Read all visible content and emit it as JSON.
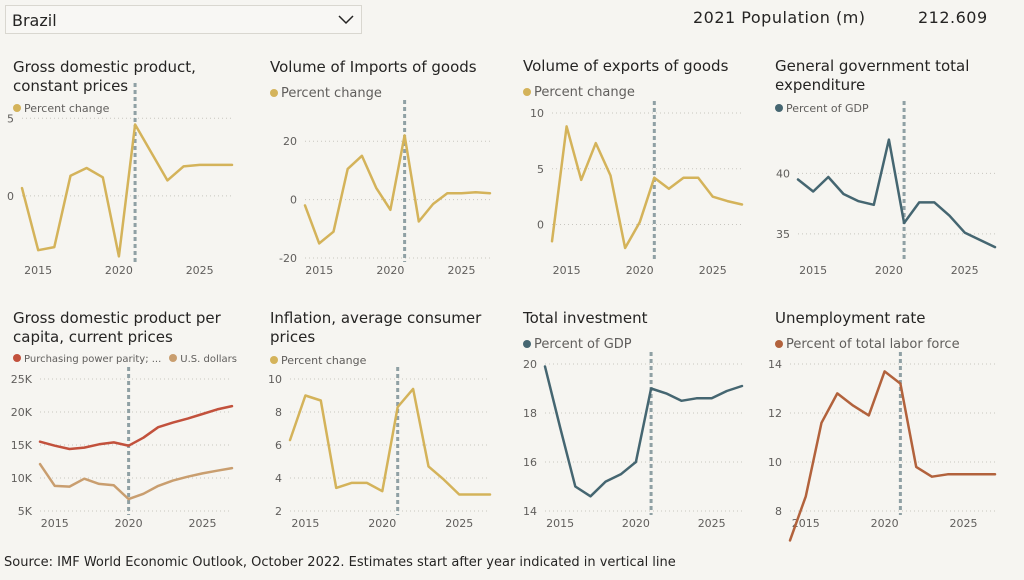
{
  "country_select": {
    "value": "Brazil",
    "icon": "chevron-down-icon"
  },
  "population": {
    "label": "2021 Population (m)",
    "value": "212.609"
  },
  "source": "Source: IMF World Economic Outlook, October 2022. Estimates start after year indicated in vertical line",
  "colors": {
    "gold": "#d4b35a",
    "slate": "#456671",
    "red": "#c2513c",
    "tan": "#c99e6f",
    "rust": "#b2623c",
    "grid": "#c8c6c0",
    "vline": "#8fa0a4"
  },
  "chart_data": [
    {
      "type": "line",
      "title": "Gross domestic product, constant prices",
      "series": [
        {
          "name": "Percent change",
          "color": "#d4b35a",
          "x": [
            2014,
            2015,
            2016,
            2017,
            2018,
            2019,
            2020,
            2021,
            2022,
            2023,
            2024,
            2025,
            2026,
            2027
          ],
          "y": [
            0.5,
            -3.5,
            -3.3,
            1.3,
            1.8,
            1.2,
            -3.9,
            4.6,
            2.8,
            1.0,
            1.9,
            2.0,
            2.0,
            2.0
          ]
        }
      ],
      "xlim": [
        2014,
        2027
      ],
      "ylim": [
        -4,
        6.5
      ],
      "xticks": [
        2015,
        2020,
        2025
      ],
      "yticks": [
        0,
        5
      ],
      "estimate_year": 2021,
      "legend_font": 11
    },
    {
      "type": "line",
      "title": "Volume of Imports of goods",
      "series": [
        {
          "name": "Percent change",
          "color": "#d4b35a",
          "x": [
            2014,
            2015,
            2016,
            2017,
            2018,
            2019,
            2020,
            2021,
            2022,
            2023,
            2024,
            2025,
            2026,
            2027
          ],
          "y": [
            -2,
            -15,
            -11,
            10.5,
            15,
            4,
            -3.5,
            22,
            -7.5,
            -1.5,
            2.2,
            2.2,
            2.5,
            2.2
          ]
        }
      ],
      "xlim": [
        2014,
        2027
      ],
      "ylim": [
        -20,
        30
      ],
      "xticks": [
        2015,
        2020,
        2025
      ],
      "yticks": [
        -20,
        0,
        20
      ],
      "estimate_year": 2021,
      "legend_font": 13
    },
    {
      "type": "line",
      "title": "Volume of exports of goods",
      "series": [
        {
          "name": "Percent change",
          "color": "#d4b35a",
          "x": [
            2014,
            2015,
            2016,
            2017,
            2018,
            2019,
            2020,
            2021,
            2022,
            2023,
            2024,
            2025,
            2026,
            2027
          ],
          "y": [
            -1.5,
            8.8,
            4,
            7.3,
            4.4,
            -2.1,
            0.2,
            4.2,
            3.2,
            4.2,
            4.2,
            2.5,
            2.1,
            1.8
          ]
        }
      ],
      "xlim": [
        2014,
        2027
      ],
      "ylim": [
        -3,
        10
      ],
      "xticks": [
        2015,
        2020,
        2025
      ],
      "yticks": [
        0,
        5,
        10
      ],
      "estimate_year": 2021,
      "legend_font": 13
    },
    {
      "type": "line",
      "title": "General government total expenditure",
      "series": [
        {
          "name": "Percent of GDP",
          "color": "#456671",
          "x": [
            2014,
            2015,
            2016,
            2017,
            2018,
            2019,
            2020,
            2021,
            2022,
            2023,
            2024,
            2025,
            2026,
            2027
          ],
          "y": [
            39.5,
            38.5,
            39.7,
            38.3,
            37.7,
            37.4,
            42.8,
            35.9,
            37.6,
            37.6,
            36.5,
            35.1,
            34.5,
            33.9
          ]
        }
      ],
      "xlim": [
        2014,
        2027
      ],
      "ylim": [
        33,
        45
      ],
      "xticks": [
        2015,
        2020,
        2025
      ],
      "yticks": [
        35,
        40
      ],
      "estimate_year": 2021,
      "legend_font": 11
    },
    {
      "type": "line",
      "title": "Gross domestic product per capita, current prices",
      "series": [
        {
          "name": "Purchasing power parity; ...",
          "color": "#c2513c",
          "x": [
            2014,
            2015,
            2016,
            2017,
            2018,
            2019,
            2020,
            2021,
            2022,
            2023,
            2024,
            2025,
            2026,
            2027
          ],
          "y": [
            15500,
            14900,
            14400,
            14600,
            15100,
            15400,
            14900,
            16100,
            17700,
            18400,
            19000,
            19700,
            20400,
            20900
          ]
        },
        {
          "name": "U.S. dollars",
          "color": "#c99e6f",
          "x": [
            2014,
            2015,
            2016,
            2017,
            2018,
            2019,
            2020,
            2021,
            2022,
            2023,
            2024,
            2025,
            2026,
            2027
          ],
          "y": [
            12100,
            8800,
            8700,
            9900,
            9100,
            8900,
            6800,
            7600,
            8800,
            9600,
            10200,
            10700,
            11100,
            11500
          ]
        }
      ],
      "xlim": [
        2014,
        2027
      ],
      "ylim": [
        5000,
        25000
      ],
      "xticks": [
        2015,
        2020,
        2025
      ],
      "yticks": [
        5000,
        10000,
        15000,
        20000,
        25000
      ],
      "ytick_labels": [
        "5K",
        "10K",
        "15K",
        "20K",
        "25K"
      ],
      "estimate_year": 2020,
      "legend_font": 10
    },
    {
      "type": "line",
      "title": "Inflation, average consumer prices",
      "series": [
        {
          "name": "Percent change",
          "color": "#d4b35a",
          "x": [
            2014,
            2015,
            2016,
            2017,
            2018,
            2019,
            2020,
            2021,
            2022,
            2023,
            2024,
            2025,
            2026,
            2027
          ],
          "y": [
            6.3,
            9.0,
            8.7,
            3.4,
            3.7,
            3.7,
            3.2,
            8.3,
            9.4,
            4.7,
            3.9,
            3.0,
            3.0,
            3.0
          ]
        }
      ],
      "xlim": [
        2014,
        2027
      ],
      "ylim": [
        2,
        10
      ],
      "xticks": [
        2015,
        2020,
        2025
      ],
      "yticks": [
        2,
        4,
        6,
        8,
        10
      ],
      "estimate_year": 2021,
      "legend_font": 11
    },
    {
      "type": "line",
      "title": "Total investment",
      "series": [
        {
          "name": "Percent of GDP",
          "color": "#456671",
          "x": [
            2014,
            2015,
            2016,
            2017,
            2018,
            2019,
            2020,
            2021,
            2022,
            2023,
            2024,
            2025,
            2026,
            2027
          ],
          "y": [
            19.9,
            17.4,
            15.0,
            14.6,
            15.2,
            15.5,
            16.0,
            19.0,
            18.8,
            18.5,
            18.6,
            18.6,
            18.9,
            19.1
          ]
        }
      ],
      "xlim": [
        2014,
        2027
      ],
      "ylim": [
        14,
        20
      ],
      "xticks": [
        2015,
        2020,
        2025
      ],
      "yticks": [
        14,
        16,
        18,
        20
      ],
      "estimate_year": 2021,
      "legend_font": 13
    },
    {
      "type": "line",
      "title": "Unemployment rate",
      "series": [
        {
          "name": "Percent of total labor force",
          "color": "#b2623c",
          "x": [
            2014,
            2015,
            2016,
            2017,
            2018,
            2019,
            2020,
            2021,
            2022,
            2023,
            2024,
            2025,
            2026,
            2027
          ],
          "y": [
            6.8,
            8.6,
            11.6,
            12.8,
            12.3,
            11.9,
            13.7,
            13.2,
            9.8,
            9.4,
            9.5,
            9.5,
            9.5,
            9.5
          ]
        }
      ],
      "xlim": [
        2014,
        2027
      ],
      "ylim": [
        8,
        14
      ],
      "xticks": [
        2015,
        2020,
        2025
      ],
      "yticks": [
        8,
        10,
        12,
        14
      ],
      "estimate_year": 2021,
      "legend_font": 13
    }
  ]
}
